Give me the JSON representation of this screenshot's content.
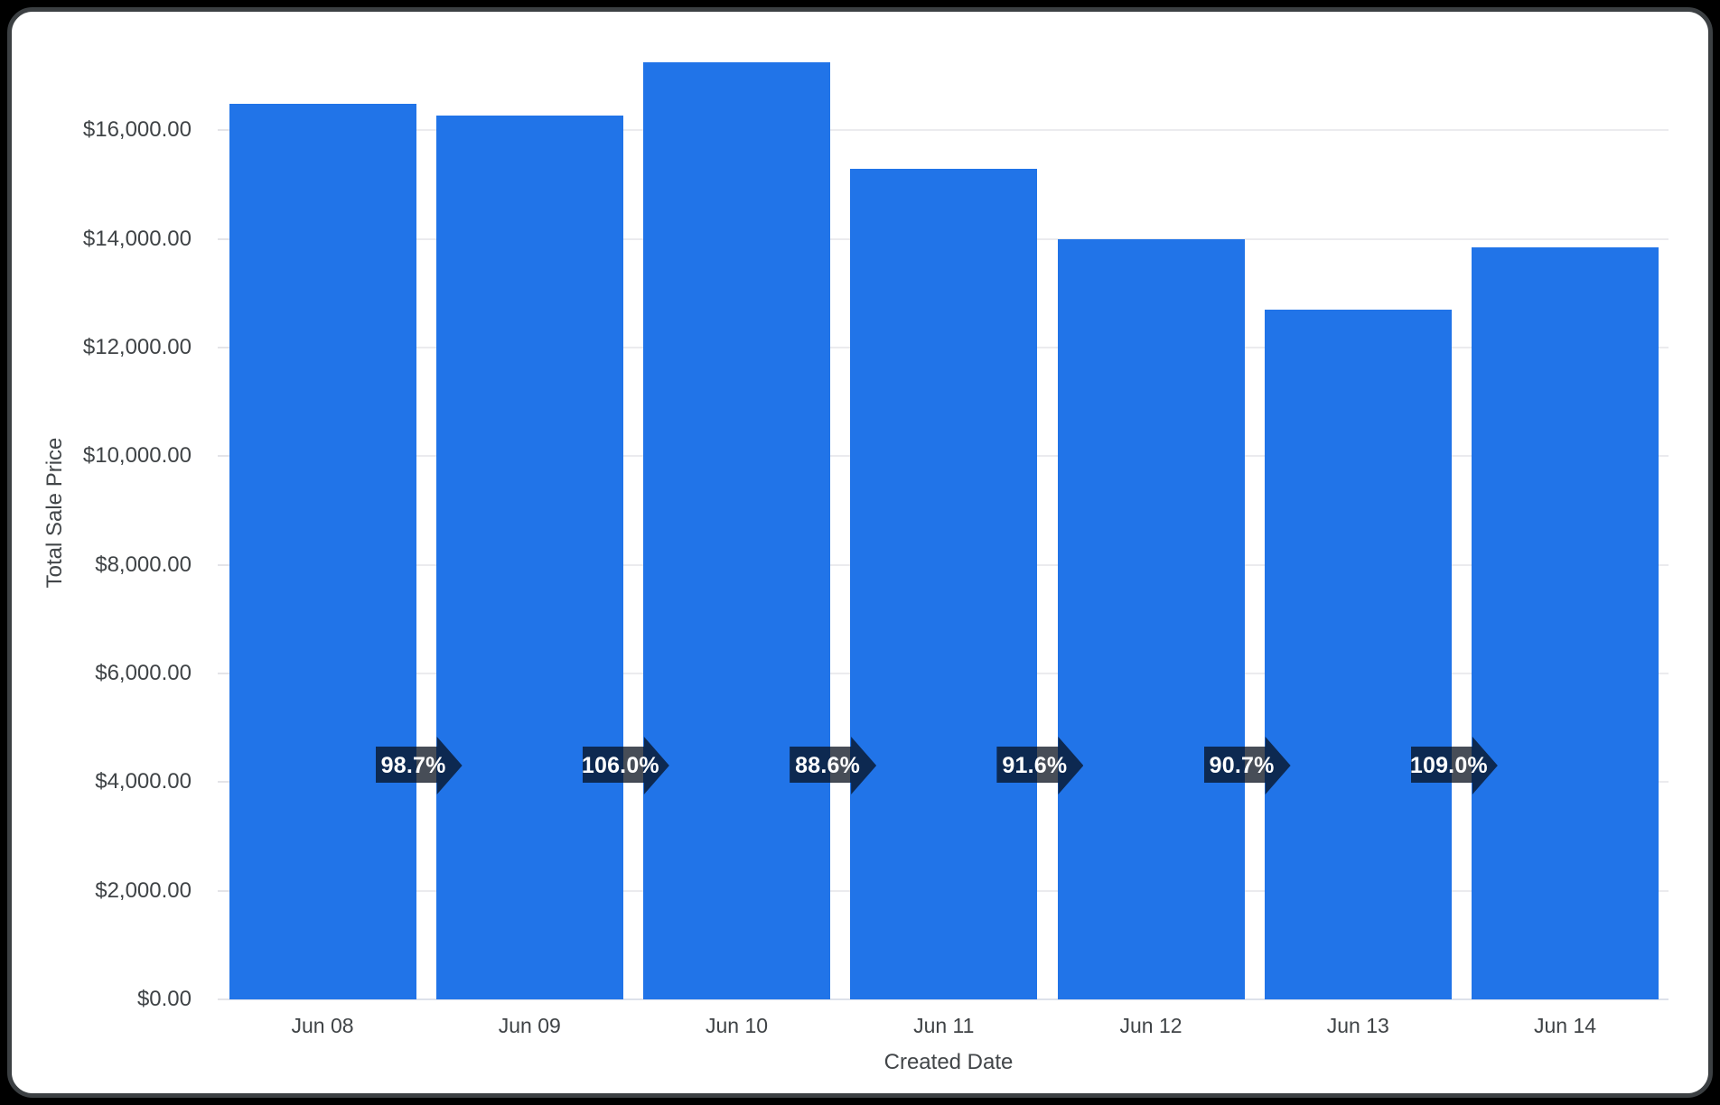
{
  "frame": {
    "background_color": "#000000",
    "card_border_color": "#3c4043",
    "card_background_color": "#ffffff"
  },
  "chart_data": {
    "type": "bar",
    "title": "",
    "xlabel": "Created Date",
    "ylabel": "Total Sale Price",
    "categories": [
      "Jun 08",
      "Jun 09",
      "Jun 10",
      "Jun 11",
      "Jun 12",
      "Jun 13",
      "Jun 14"
    ],
    "series": [
      {
        "name": "Total Sale Price",
        "values": [
          16485,
          16270,
          17250,
          15285,
          14000,
          12700,
          13845
        ]
      }
    ],
    "bar_color": "#2174e8",
    "ylim": [
      0,
      17500
    ],
    "y_tick_interval": 2000,
    "y_ticks": [
      {
        "value": 0,
        "label": "$0.00"
      },
      {
        "value": 2000,
        "label": "$2,000.00"
      },
      {
        "value": 4000,
        "label": "$4,000.00"
      },
      {
        "value": 6000,
        "label": "$6,000.00"
      },
      {
        "value": 8000,
        "label": "$8,000.00"
      },
      {
        "value": 10000,
        "label": "$10,000.00"
      },
      {
        "value": 12000,
        "label": "$12,000.00"
      },
      {
        "value": 14000,
        "label": "$14,000.00"
      },
      {
        "value": 16000,
        "label": "$16,000.00"
      }
    ],
    "grid": true,
    "legend": "none",
    "growth_arrows": [
      {
        "between": [
          "Jun 08",
          "Jun 09"
        ],
        "label": "98.7%",
        "percent": 98.7
      },
      {
        "between": [
          "Jun 09",
          "Jun 10"
        ],
        "label": "106.0%",
        "percent": 106.0
      },
      {
        "between": [
          "Jun 10",
          "Jun 11"
        ],
        "label": "88.6%",
        "percent": 88.6
      },
      {
        "between": [
          "Jun 11",
          "Jun 12"
        ],
        "label": "91.6%",
        "percent": 91.6
      },
      {
        "between": [
          "Jun 12",
          "Jun 13"
        ],
        "label": "90.7%",
        "percent": 90.7
      },
      {
        "between": [
          "Jun 13",
          "Jun 14"
        ],
        "label": "109.0%",
        "percent": 109.0
      }
    ],
    "arrow_chip_color": "rgba(7,15,28,0.74)",
    "arrow_chip_text_color": "#ffffff"
  }
}
